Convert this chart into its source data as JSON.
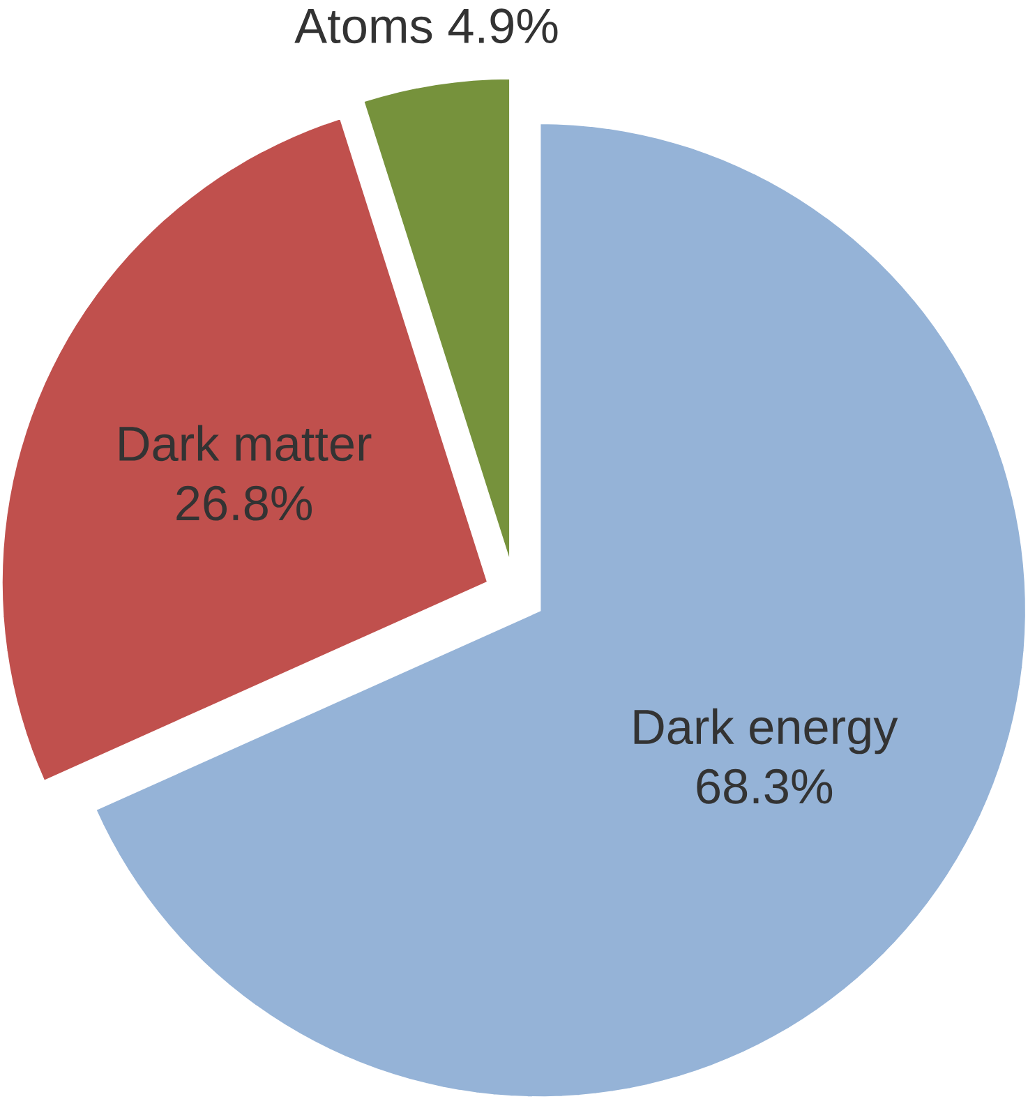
{
  "chart_data": {
    "type": "pie",
    "categories": [
      "Dark energy",
      "Dark matter",
      "Atoms"
    ],
    "values": [
      68.3,
      26.8,
      4.9
    ],
    "value_labels": [
      "68.3%",
      "26.8%",
      "4.9%"
    ],
    "colors": [
      "#95b3d7",
      "#c0504d",
      "#76923c"
    ]
  }
}
